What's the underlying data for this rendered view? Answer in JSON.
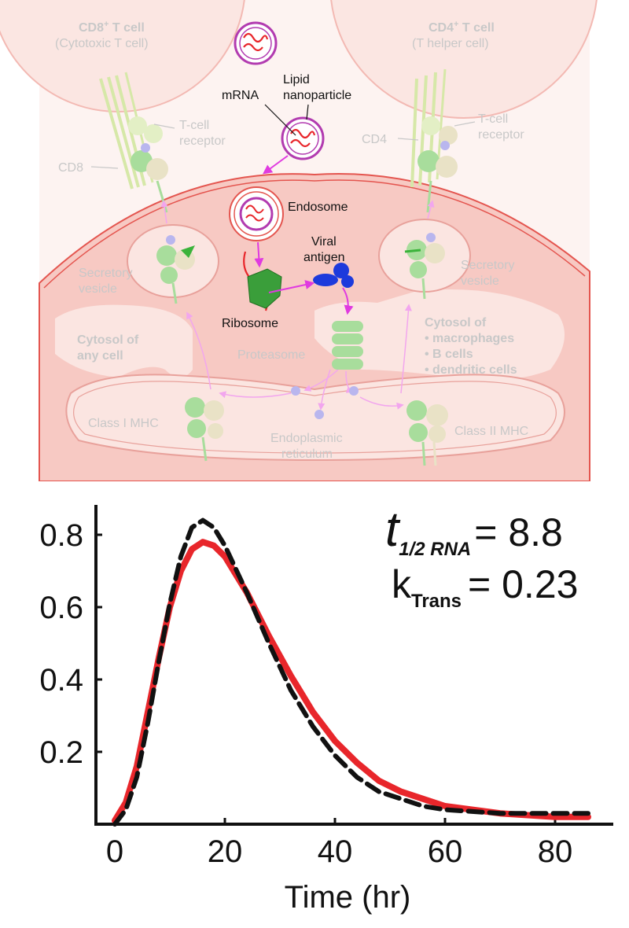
{
  "diagram": {
    "cd8_cell": {
      "title": "CD8",
      "title_sup": "+",
      "title_rest": " T cell",
      "subtitle": "(Cytotoxic T cell)"
    },
    "cd4_cell": {
      "title": "CD4",
      "title_sup": "+",
      "title_rest": " T cell",
      "subtitle": "(T helper cell)"
    },
    "left_tcell_receptor": [
      "T-cell",
      "receptor"
    ],
    "right_tcell_receptor": [
      "T-cell",
      "receptor"
    ],
    "cd8_label": "CD8",
    "cd4_label": "CD4",
    "mrna_label": "mRNA",
    "lipid_nanoparticle_label": [
      "Lipid",
      "nanoparticle"
    ],
    "endosome_label": "Endosome",
    "viral_antigen_label": [
      "Viral",
      "antigen"
    ],
    "ribosome_label": "Ribosome",
    "proteasome_label": "Proteasome",
    "left_secretory_vesicle": [
      "Secretory",
      "vesicle"
    ],
    "right_secretory_vesicle": [
      "Secretory",
      "vesicle"
    ],
    "cytosol_any_cell": [
      "Cytosol of",
      "any cell"
    ],
    "cytosol_apc": [
      "Cytosol of",
      "• macrophages",
      "• B cells",
      "• dendritic cells"
    ],
    "class1_mhc_label": "Class I MHC",
    "class2_mhc_label": "Class II MHC",
    "er_label": [
      "Endoplasmic",
      "reticulum"
    ],
    "colors": {
      "cell_fill": "#fbe6e2",
      "host_fill": "#f7c9c3",
      "cytosol_fill": "#fbe5e1",
      "membrane": "#e4554f",
      "mhc_green": "#9bd89b",
      "lnp_purple": "#b23bb0",
      "mrna_red": "#e8262b",
      "ribosome_green": "#2e9e2e",
      "antigen_blue": "#1d3adc",
      "arrow_magenta": "#e03ae0",
      "peptide_lavender": "#b9b6ee"
    }
  },
  "chart_data": {
    "type": "line",
    "xlabel": "Time (hr)",
    "ylabel": "",
    "xlim": [
      0,
      90
    ],
    "ylim": [
      0,
      0.9
    ],
    "x_ticks": [
      0,
      20,
      40,
      60,
      80
    ],
    "y_ticks": [
      0.2,
      0.4,
      0.6,
      0.8
    ],
    "series": [
      {
        "style": "solid",
        "color": "#e8262b",
        "x": [
          0,
          2,
          4,
          6,
          8,
          10,
          12,
          14,
          16,
          18,
          20,
          24,
          28,
          32,
          36,
          40,
          44,
          48,
          52,
          56,
          60,
          65,
          70,
          75,
          80,
          86
        ],
        "y": [
          0.01,
          0.06,
          0.16,
          0.31,
          0.46,
          0.6,
          0.7,
          0.76,
          0.78,
          0.77,
          0.74,
          0.64,
          0.52,
          0.41,
          0.31,
          0.23,
          0.17,
          0.12,
          0.09,
          0.07,
          0.05,
          0.04,
          0.03,
          0.025,
          0.02,
          0.02
        ]
      },
      {
        "style": "dashed",
        "color": "#111111",
        "x": [
          0,
          2,
          4,
          6,
          8,
          10,
          12,
          14,
          16,
          18,
          20,
          24,
          28,
          32,
          36,
          40,
          44,
          48,
          52,
          56,
          60,
          65,
          70,
          75,
          80,
          86
        ],
        "y": [
          0.0,
          0.04,
          0.13,
          0.28,
          0.45,
          0.61,
          0.74,
          0.82,
          0.84,
          0.82,
          0.77,
          0.64,
          0.5,
          0.37,
          0.27,
          0.19,
          0.13,
          0.09,
          0.07,
          0.05,
          0.04,
          0.035,
          0.03,
          0.03,
          0.03,
          0.03
        ]
      }
    ],
    "annotation": {
      "line1_main": "t",
      "line1_sub": "1/2 RNA",
      "line1_value": "= 8.8",
      "line2_main": "k",
      "line2_sub": "Trans",
      "line2_value": "= 0.23"
    }
  }
}
